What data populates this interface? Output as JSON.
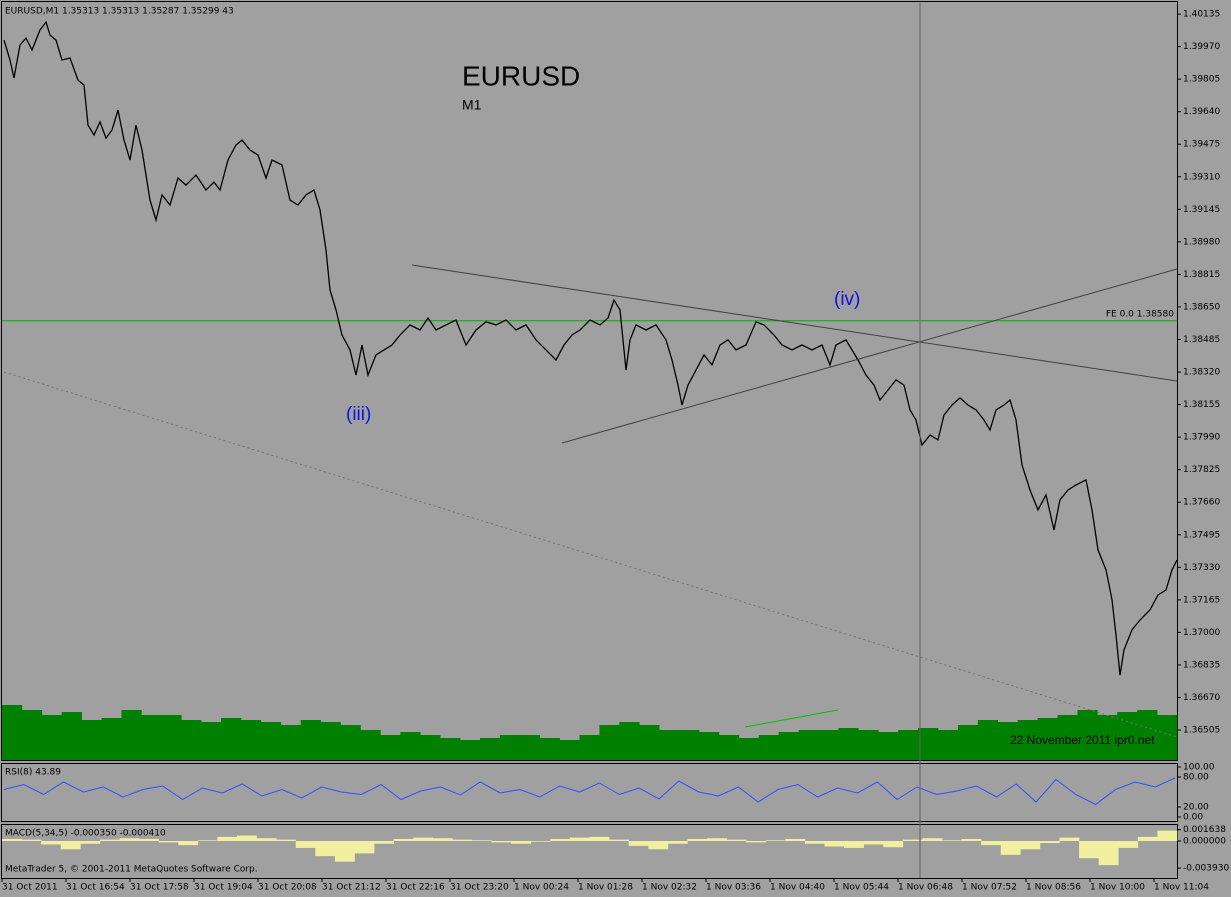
{
  "header": "EURUSD,M1  1.35313 1.35313 1.35287 1.35299  43",
  "footer": "MetaTrader 5, © 2001-2011 MetaQuotes Software Corp.",
  "chart_data": [
    {
      "type": "line",
      "title": "EURUSD",
      "subtitle": "M1",
      "annotations": [
        "(iii)",
        "(iv)"
      ],
      "watermark": "22 November 2011 ipr0.net",
      "color": "#000000",
      "x": [
        2,
        8,
        12,
        18,
        24,
        30,
        38,
        44,
        48,
        54,
        60,
        68,
        76,
        82,
        86,
        92,
        98,
        104,
        110,
        116,
        122,
        128,
        134,
        140,
        148,
        154,
        160,
        168,
        176,
        184,
        194,
        204,
        212,
        218,
        226,
        234,
        240,
        248,
        256,
        264,
        270,
        280,
        288,
        296,
        304,
        312,
        318,
        324,
        328,
        334,
        340,
        348,
        354,
        360,
        366,
        374,
        382,
        390,
        398,
        408,
        418,
        426,
        434,
        444,
        454,
        464,
        474,
        484,
        494,
        504,
        514,
        524,
        534,
        544,
        554,
        562,
        570,
        578,
        588,
        598,
        606,
        612,
        618,
        624,
        628,
        634,
        644,
        654,
        664,
        670,
        676,
        680,
        686,
        694,
        702,
        710,
        718,
        726,
        734,
        744,
        754,
        762,
        772,
        780,
        790,
        800,
        810,
        820,
        828,
        834,
        844,
        850,
        856,
        864,
        872,
        878,
        886,
        894,
        902,
        908,
        914,
        920,
        928,
        936,
        942,
        950,
        958,
        966,
        974,
        982,
        988,
        994,
        1002,
        1008,
        1014,
        1020,
        1028,
        1036,
        1044,
        1052,
        1058,
        1066,
        1074,
        1084,
        1090,
        1096,
        1104,
        1110,
        1114,
        1118,
        1122,
        1130,
        1138,
        1148,
        1156,
        1164,
        1170,
        1175
      ],
      "values": [
        1.40003,
        1.39902,
        1.39811,
        1.39978,
        1.40013,
        1.39953,
        1.40054,
        1.40094,
        1.40029,
        1.40003,
        1.39902,
        1.39912,
        1.398,
        1.39775,
        1.39572,
        1.39522,
        1.39588,
        1.39506,
        1.39547,
        1.39648,
        1.39496,
        1.39395,
        1.39572,
        1.39446,
        1.39192,
        1.39091,
        1.39218,
        1.39167,
        1.39304,
        1.39268,
        1.39319,
        1.39243,
        1.39283,
        1.39243,
        1.39395,
        1.39471,
        1.39496,
        1.39446,
        1.3942,
        1.39304,
        1.39395,
        1.3937,
        1.39192,
        1.39167,
        1.39218,
        1.39243,
        1.39142,
        1.38939,
        1.38736,
        1.38635,
        1.38508,
        1.38432,
        1.38305,
        1.38457,
        1.38305,
        1.38407,
        1.38432,
        1.38457,
        1.38508,
        1.38559,
        1.38533,
        1.38594,
        1.38533,
        1.38559,
        1.38584,
        1.38457,
        1.38533,
        1.38574,
        1.38559,
        1.38584,
        1.38533,
        1.38559,
        1.38483,
        1.38432,
        1.38381,
        1.38457,
        1.38508,
        1.38533,
        1.38584,
        1.38559,
        1.38594,
        1.38685,
        1.38635,
        1.3833,
        1.38483,
        1.38559,
        1.38533,
        1.38559,
        1.38483,
        1.38381,
        1.38254,
        1.38153,
        1.38254,
        1.3833,
        1.38407,
        1.38356,
        1.38457,
        1.38483,
        1.38432,
        1.38457,
        1.38574,
        1.38559,
        1.38508,
        1.38457,
        1.38432,
        1.38457,
        1.38432,
        1.38457,
        1.38356,
        1.38457,
        1.38483,
        1.38432,
        1.38381,
        1.38305,
        1.38254,
        1.38178,
        1.38229,
        1.3828,
        1.38254,
        1.38128,
        1.38077,
        1.3795,
        1.38001,
        1.37976,
        1.38102,
        1.38153,
        1.38189,
        1.38153,
        1.38128,
        1.38077,
        1.38026,
        1.38128,
        1.38153,
        1.38178,
        1.38077,
        1.37849,
        1.37722,
        1.37621,
        1.37697,
        1.37519,
        1.37672,
        1.37722,
        1.37748,
        1.37773,
        1.37621,
        1.37418,
        1.37317,
        1.37165,
        1.36987,
        1.36784,
        1.36911,
        1.37013,
        1.37063,
        1.37114,
        1.3719,
        1.37215,
        1.37317,
        1.37367
      ],
      "xlim": [
        0,
        1175
      ],
      "xticks": [
        {
          "value": 0,
          "label": "31 Oct 2011"
        },
        {
          "value": 64,
          "label": "31 Oct 16:54"
        },
        {
          "value": 128,
          "label": "31 Oct 17:58"
        },
        {
          "value": 192,
          "label": "31 Oct 19:04"
        },
        {
          "value": 256,
          "label": "31 Oct 20:08"
        },
        {
          "value": 320,
          "label": "31 Oct 21:12"
        },
        {
          "value": 384,
          "label": "31 Oct 22:16"
        },
        {
          "value": 448,
          "label": "31 Oct 23:20"
        },
        {
          "value": 512,
          "label": "1 Nov 00:24"
        },
        {
          "value": 576,
          "label": "1 Nov 01:28"
        },
        {
          "value": 640,
          "label": "1 Nov 02:32"
        },
        {
          "value": 704,
          "label": "1 Nov 03:36"
        },
        {
          "value": 768,
          "label": "1 Nov 04:40"
        },
        {
          "value": 832,
          "label": "1 Nov 05:44"
        },
        {
          "value": 896,
          "label": "1 Nov 06:48"
        },
        {
          "value": 960,
          "label": "1 Nov 07:52"
        },
        {
          "value": 1024,
          "label": "1 Nov 08:56"
        },
        {
          "value": 1088,
          "label": "1 Nov 10:00"
        },
        {
          "value": 1152,
          "label": "1 Nov 11:04"
        }
      ],
      "ylim": [
        1.36353,
        1.40186
      ],
      "yticks": [
        1.40135,
        {
          "value": 1.3997,
          "label": "1.39970"
        },
        1.39805,
        {
          "value": 1.3964,
          "label": "1.39640"
        },
        1.39475,
        {
          "value": 1.3931,
          "label": "1.39310"
        },
        1.39145,
        {
          "value": 1.3898,
          "label": "1.38980"
        },
        1.38815,
        {
          "value": 1.3865,
          "label": "1.38650"
        },
        1.38485,
        {
          "value": 1.3832,
          "label": "1.38320"
        },
        1.38155,
        {
          "value": 1.3799,
          "label": "1.37990"
        },
        1.37825,
        {
          "value": 1.3766,
          "label": "1.37660"
        },
        1.37495,
        {
          "value": 1.3733,
          "label": "1.37330"
        },
        1.37165,
        {
          "value": 1.37,
          "label": "1.37000"
        },
        1.36835,
        {
          "value": 1.3667,
          "label": "1.36670"
        },
        1.36505
      ],
      "hline": {
        "value": 1.3858,
        "label": "FE 0.0 1.38580",
        "color": "#00b000"
      },
      "volume": {
        "color": "#008000",
        "values": [
          55,
          50,
          45,
          48,
          40,
          42,
          50,
          45,
          45,
          40,
          38,
          42,
          40,
          38,
          35,
          40,
          38,
          35,
          30,
          25,
          28,
          25,
          22,
          20,
          22,
          25,
          25,
          22,
          20,
          25,
          35,
          38,
          35,
          30,
          30,
          28,
          25,
          22,
          25,
          28,
          30,
          30,
          32,
          30,
          28,
          30,
          32,
          30,
          35,
          40,
          38,
          40,
          42,
          45,
          50,
          45,
          48,
          50,
          45
        ]
      }
    },
    {
      "type": "line",
      "title": "RSI(8) 43.89",
      "color": "#3050ff",
      "values": [
        55,
        65,
        45,
        70,
        50,
        60,
        40,
        55,
        62,
        35,
        58,
        48,
        66,
        42,
        55,
        38,
        60,
        50,
        45,
        65,
        35,
        52,
        60,
        44,
        70,
        48,
        55,
        40,
        62,
        50,
        68,
        45,
        58,
        36,
        72,
        50,
        42,
        60,
        30,
        55,
        65,
        40,
        58,
        48,
        70,
        35,
        60,
        45,
        52,
        62,
        40,
        66,
        30,
        75,
        45,
        25,
        55,
        70,
        60,
        78
      ],
      "ylim": [
        0,
        100
      ],
      "yticks": [
        {
          "value": 100,
          "label": "100.00"
        },
        {
          "value": 80,
          "label": "80.00"
        },
        {
          "value": 20,
          "label": "20.00"
        },
        {
          "value": 0,
          "label": "0.00"
        }
      ]
    },
    {
      "type": "bar",
      "title": "MACD(5,34,5) -0.000350 -0.000410",
      "color": "#f0f0a0",
      "values": [
        0.0003,
        0.0002,
        -0.0005,
        -0.0012,
        -0.0004,
        0.0002,
        0.0004,
        0.0003,
        -0.0002,
        -0.0006,
        0.0001,
        0.0006,
        0.0008,
        0.0004,
        0.0002,
        -0.001,
        -0.0022,
        -0.003,
        -0.0018,
        -0.0004,
        0.0003,
        0.0005,
        0.0004,
        0.0002,
        0.0001,
        -0.0002,
        -0.0004,
        -0.0001,
        0.0003,
        0.0005,
        0.0006,
        0.0002,
        -0.0007,
        -0.0012,
        -0.0004,
        0.0003,
        0.0004,
        0.0002,
        -0.0002,
        0.0001,
        0.0003,
        -0.0004,
        -0.0008,
        -0.001,
        -0.0005,
        -0.0009,
        0.0002,
        0.0004,
        0.0001,
        0.0003,
        -0.0006,
        -0.002,
        -0.0012,
        -0.0003,
        0.0005,
        -0.0025,
        -0.0035,
        -0.001,
        0.0006,
        0.0015
      ],
      "ylim": [
        -0.00537,
        0.00247
      ],
      "yticks": [
        0.001638,
        {
          "value": 0,
          "label": "0.000000"
        },
        {
          "value": -0.00393,
          "label": "-0.003930"
        }
      ]
    }
  ]
}
